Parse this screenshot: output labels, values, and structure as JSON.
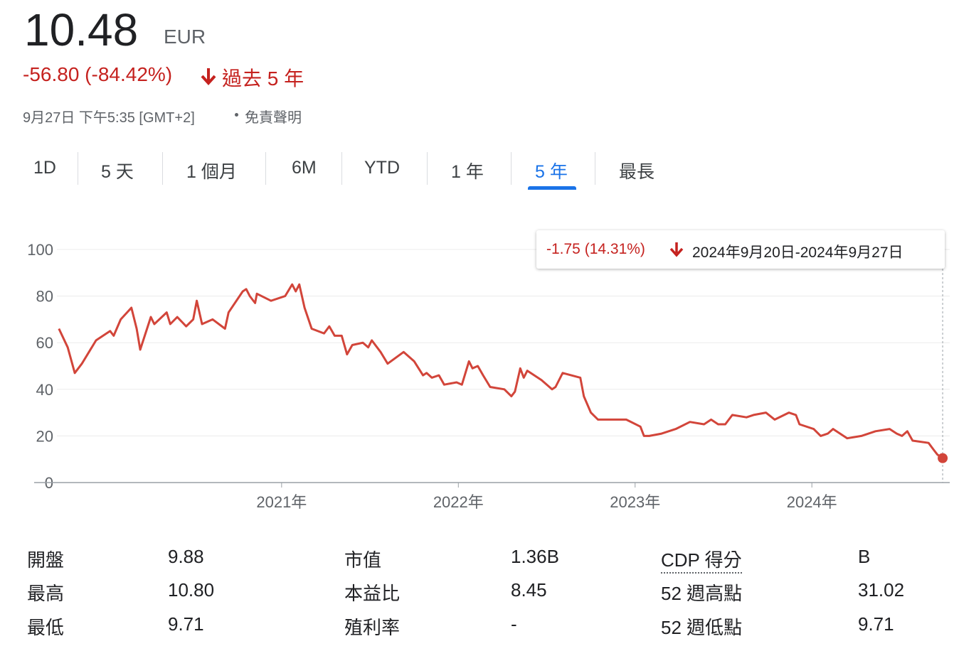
{
  "header": {
    "price": "10.48",
    "currency": "EUR",
    "change": "-56.80 (-84.42%)",
    "period": "過去 5 年",
    "timestamp": "9月27日 下午5:35 [GMT+2]",
    "disclaimer": "免責聲明"
  },
  "tabs": {
    "items": [
      "1D",
      "5 天",
      "1 個月",
      "6M",
      "YTD",
      "1 年",
      "5 年",
      "最長"
    ],
    "selected": 6
  },
  "tooltip": {
    "change": "-1.75 (14.31%)",
    "range": "2024年9月20日-2024年9月27日"
  },
  "chart_data": {
    "type": "line",
    "color": "#d2453a",
    "x": [
      2019.74,
      2019.79,
      2019.83,
      2019.87,
      2019.95,
      2020.03,
      2020.05,
      2020.09,
      2020.15,
      2020.18,
      2020.2,
      2020.26,
      2020.28,
      2020.35,
      2020.37,
      2020.41,
      2020.46,
      2020.5,
      2020.52,
      2020.55,
      2020.61,
      2020.68,
      2020.7,
      2020.78,
      2020.8,
      2020.82,
      2020.85,
      2020.86,
      2020.94,
      2021.02,
      2021.06,
      2021.08,
      2021.1,
      2021.13,
      2021.17,
      2021.24,
      2021.27,
      2021.3,
      2021.34,
      2021.37,
      2021.4,
      2021.46,
      2021.49,
      2021.51,
      2021.56,
      2021.6,
      2021.69,
      2021.75,
      2021.8,
      2021.82,
      2021.85,
      2021.89,
      2021.92,
      2021.99,
      2022.02,
      2022.06,
      2022.08,
      2022.11,
      2022.14,
      2022.18,
      2022.26,
      2022.3,
      2022.32,
      2022.35,
      2022.37,
      2022.39,
      2022.47,
      2022.53,
      2022.55,
      2022.59,
      2022.69,
      2022.71,
      2022.75,
      2022.79,
      2022.87,
      2022.95,
      2023.03,
      2023.05,
      2023.08,
      2023.15,
      2023.23,
      2023.31,
      2023.39,
      2023.43,
      2023.47,
      2023.51,
      2023.55,
      2023.63,
      2023.67,
      2023.74,
      2023.79,
      2023.87,
      2023.91,
      2023.93,
      2024.01,
      2024.05,
      2024.09,
      2024.12,
      2024.2,
      2024.28,
      2024.36,
      2024.44,
      2024.48,
      2024.51,
      2024.54,
      2024.57,
      2024.66,
      2024.69,
      2024.71,
      2024.74
    ],
    "values": [
      66,
      58,
      47,
      51,
      61,
      65,
      63,
      70,
      75,
      66,
      57,
      71,
      68,
      73,
      68,
      71,
      67,
      70,
      78,
      68,
      70,
      66,
      73,
      82,
      83,
      80,
      77,
      81,
      78,
      80,
      85,
      82,
      85,
      75,
      66,
      64,
      67,
      63,
      63,
      55,
      59,
      60,
      58,
      61,
      56,
      51,
      56,
      52,
      46,
      47,
      45,
      46,
      42,
      43,
      42,
      52,
      49,
      50,
      46,
      41,
      40,
      37,
      39,
      49,
      45,
      48,
      44,
      40,
      41,
      47,
      45,
      37,
      30,
      27,
      27,
      27,
      24,
      20,
      20,
      21,
      23,
      26,
      25,
      27,
      25,
      25,
      29,
      28,
      29,
      30,
      27,
      30,
      29,
      25,
      23,
      20,
      21,
      23,
      19,
      20,
      22,
      23,
      21,
      20,
      22,
      18,
      17,
      14,
      12,
      10.48
    ],
    "xlim": [
      2019.6,
      2024.78
    ],
    "xticks": [
      {
        "value": 2021,
        "label": "2021年"
      },
      {
        "value": 2022,
        "label": "2022年"
      },
      {
        "value": 2023,
        "label": "2023年"
      },
      {
        "value": 2024,
        "label": "2024年"
      }
    ],
    "ylim": [
      0,
      100
    ],
    "yticks": [
      0,
      20,
      40,
      60,
      80,
      100
    ],
    "grid": true
  },
  "stats": {
    "rows": [
      [
        [
          "開盤",
          "9.88"
        ],
        [
          "市值",
          "1.36B"
        ],
        [
          "CDP 得分",
          "B"
        ]
      ],
      [
        [
          "最高",
          "10.80"
        ],
        [
          "本益比",
          "8.45"
        ],
        [
          "52 週高點",
          "31.02"
        ]
      ],
      [
        [
          "最低",
          "9.71"
        ],
        [
          "殖利率",
          "-"
        ],
        [
          "52 週低點",
          "9.71"
        ]
      ]
    ]
  }
}
